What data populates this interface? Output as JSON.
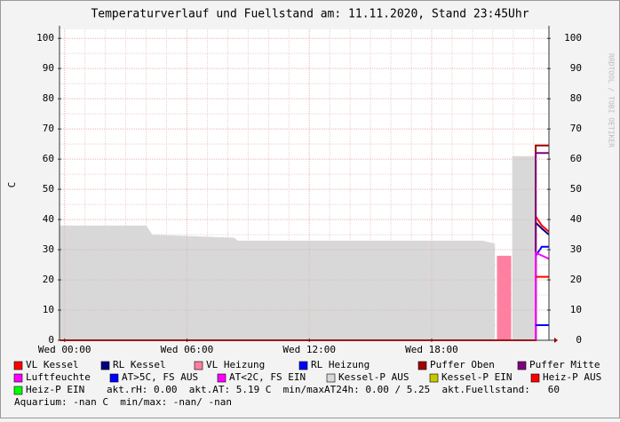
{
  "chart_data": {
    "type": "line",
    "title": "Temperaturverlauf und Fuellstand am: 11.11.2020, Stand 23:45Uhr",
    "y_label": "C",
    "watermark": "RRDTOOL / TOBI OETIKER",
    "xlim": [
      -0.25,
      23.75
    ],
    "xticks": [
      {
        "value": 0,
        "label": "Wed 00:00"
      },
      {
        "value": 6,
        "label": "Wed 06:00"
      },
      {
        "value": 12,
        "label": "Wed 12:00"
      },
      {
        "value": 18,
        "label": "Wed 18:00"
      }
    ],
    "ylim": [
      0,
      103
    ],
    "yticks": [
      0,
      10,
      20,
      30,
      40,
      50,
      60,
      70,
      80,
      90,
      100
    ],
    "grid": true,
    "series": [
      {
        "name": "VL Kessel",
        "color": "#ff0000",
        "kind": "line",
        "x": [
          -0.25,
          23.1,
          23.1,
          23.4,
          23.75
        ],
        "values": [
          0,
          0,
          41,
          38,
          36
        ]
      },
      {
        "name": "RL Kessel",
        "color": "#000080",
        "kind": "line",
        "x": [
          23.1,
          23.1,
          23.4,
          23.75
        ],
        "values": [
          0,
          39,
          37,
          35
        ]
      },
      {
        "name": "VL Heizung",
        "color": "#ff7fa0",
        "kind": "area",
        "x": [
          21.2,
          21.9
        ],
        "values": [
          28,
          28
        ]
      },
      {
        "name": "RL Heizung",
        "color": "#0000ff",
        "kind": "line",
        "x": [
          23.1,
          23.1,
          23.4,
          23.75
        ],
        "values": [
          0,
          28,
          31,
          31
        ]
      },
      {
        "name": "Puffer Oben",
        "color": "#a00000",
        "kind": "line",
        "x": [
          23.1,
          23.1,
          23.75
        ],
        "values": [
          0,
          64.5,
          64.5
        ]
      },
      {
        "name": "Puffer Mitte",
        "color": "#800080",
        "kind": "line",
        "x": [
          23.1,
          23.1,
          23.75
        ],
        "values": [
          0,
          62,
          62
        ]
      },
      {
        "name": "Luftfeuchte",
        "color": "#ff00ff",
        "kind": "line",
        "x": [
          23.1,
          23.1,
          23.75
        ],
        "values": [
          0,
          29,
          27
        ]
      },
      {
        "name": "AT>5C, FS AUS",
        "color": "#0000ff",
        "kind": "line",
        "x": [
          23.1,
          23.75
        ],
        "values": [
          5,
          5
        ]
      },
      {
        "name": "AT<2C, FS EIN",
        "color": "#ff00ff"
      },
      {
        "name": "Kessel-P AUS",
        "color": "#d8d8d8",
        "kind": "area",
        "x": [
          -0.25,
          4.0,
          4.3,
          8.3,
          8.5,
          12,
          16,
          20.5,
          21.1,
          21.1,
          21.95,
          23.1
        ],
        "values": [
          38,
          38,
          35,
          34,
          33,
          33,
          33,
          33,
          32,
          null,
          61,
          61
        ]
      },
      {
        "name": "Kessel-P EIN",
        "color": "#c8c800"
      },
      {
        "name": "Heiz-P AUS",
        "color": "#ff0000",
        "kind": "line",
        "x": [
          23.1,
          23.75
        ],
        "values": [
          21,
          21
        ]
      },
      {
        "name": "Heiz-P EIN",
        "color": "#00ff00"
      }
    ],
    "stats_line": "akt.rH: 0.00  akt.AT: 5.19 C  min/maxAT24h: 0.00 / 5.25  akt.Fuellstand:   60",
    "aquarium_line": "Aquarium: -nan C  min/max: -nan/ -nan"
  }
}
